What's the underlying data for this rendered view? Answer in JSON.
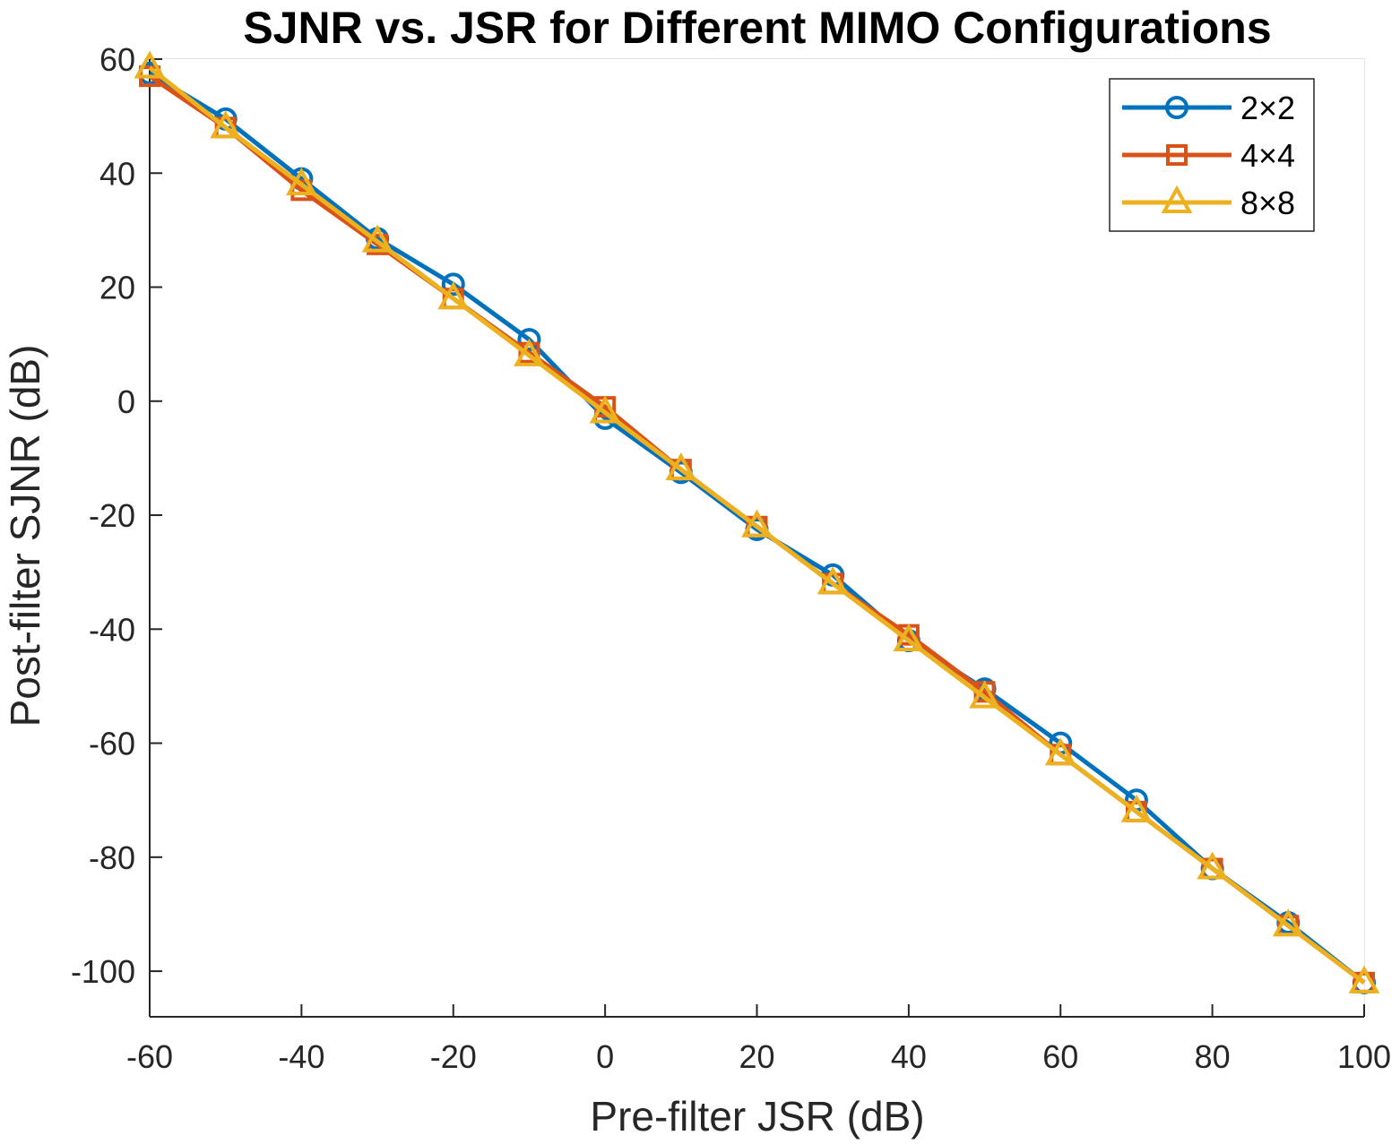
{
  "chart_data": {
    "type": "line",
    "title": "SJNR vs. JSR for Different MIMO Configurations",
    "xlabel": "Pre-filter JSR (dB)",
    "ylabel": "Post-filter SJNR (dB)",
    "xlim": [
      -60,
      100
    ],
    "ylim": [
      -108,
      60
    ],
    "xticks": [
      -60,
      -40,
      -20,
      0,
      20,
      40,
      60,
      80,
      100
    ],
    "yticks": [
      -100,
      -80,
      -60,
      -40,
      -20,
      0,
      20,
      40,
      60
    ],
    "grid": true,
    "legend_position": "top-right",
    "x": [
      -60,
      -50,
      -40,
      -30,
      -20,
      -10,
      0,
      10,
      20,
      30,
      40,
      50,
      60,
      70,
      80,
      90,
      100
    ],
    "series": [
      {
        "name": "2×2",
        "color": "#0072BD",
        "marker": "circle",
        "values": [
          57.5,
          49.5,
          39,
          28.5,
          20.5,
          10.8,
          -3,
          -12.5,
          -22.5,
          -30.5,
          -42,
          -50.5,
          -60,
          -70,
          -82,
          -91.5,
          -102
        ]
      },
      {
        "name": "4×4",
        "color": "#D95319",
        "marker": "square",
        "values": [
          57,
          48,
          37,
          27.5,
          18,
          8.5,
          -1,
          -12,
          -22,
          -32,
          -41,
          -51,
          -62,
          -72,
          -82,
          -92,
          -102
        ]
      },
      {
        "name": "8×8",
        "color": "#EDB120",
        "marker": "triangle",
        "values": [
          58.5,
          48,
          38,
          28,
          18,
          8,
          -2,
          -12,
          -22,
          -32,
          -42,
          -52,
          -62,
          -72,
          -82,
          -92,
          -102
        ]
      }
    ]
  }
}
